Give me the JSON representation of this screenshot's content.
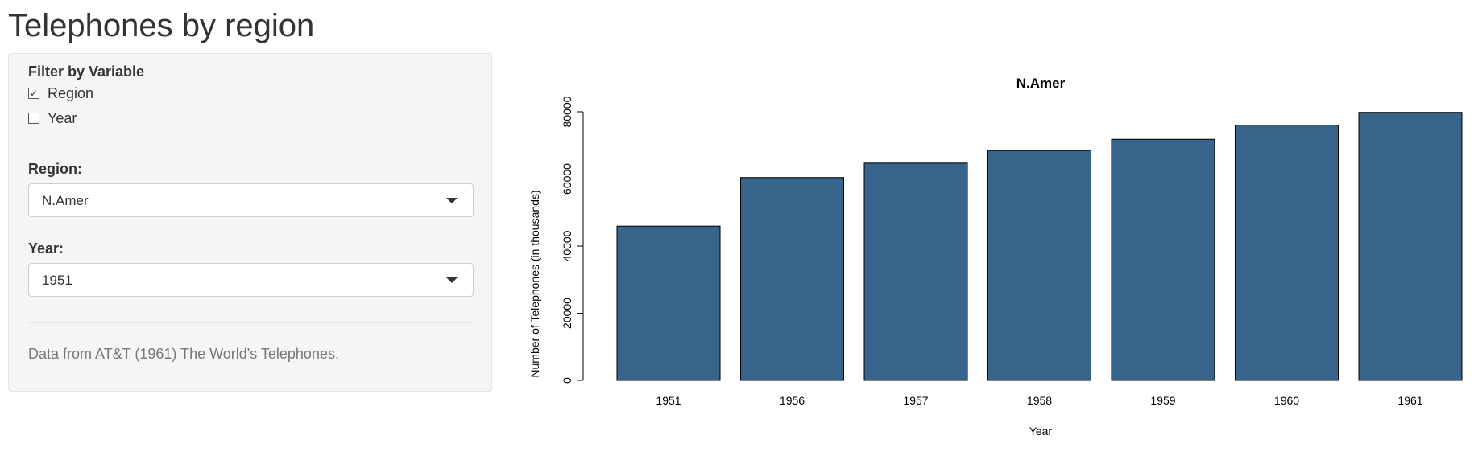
{
  "app": {
    "title": "Telephones by region"
  },
  "sidebar": {
    "filter_label": "Filter by Variable",
    "filters": [
      {
        "label": "Region",
        "checked": true
      },
      {
        "label": "Year",
        "checked": false
      }
    ],
    "region_label": "Region:",
    "region_value": "N.Amer",
    "year_label": "Year:",
    "year_value": "1951",
    "source_note": "Data from AT&T (1961) The World's Telephones."
  },
  "chart_data": {
    "type": "bar",
    "title": "N.Amer",
    "xlabel": "Year",
    "ylabel": "Number of Telephones (in thousands)",
    "categories": [
      "1951",
      "1956",
      "1957",
      "1958",
      "1959",
      "1960",
      "1961"
    ],
    "values": [
      45939,
      60423,
      64721,
      68484,
      71799,
      76036,
      79831
    ],
    "ylim": [
      0,
      80000
    ],
    "yticks": [
      0,
      20000,
      40000,
      60000,
      80000
    ],
    "bar_color": "#36648b",
    "grid": false
  }
}
